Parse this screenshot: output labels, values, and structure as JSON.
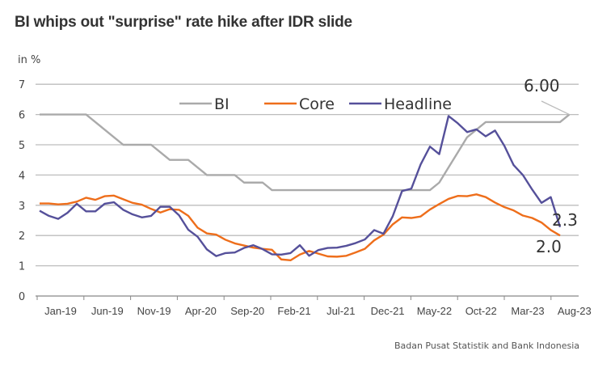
{
  "chart_data": {
    "type": "line",
    "title": "BI whips out \"surprise\" rate hike after IDR slide",
    "ylabel": "in %",
    "ylim": [
      0,
      7
    ],
    "yticks": [
      0,
      1,
      2,
      3,
      4,
      5,
      6,
      7
    ],
    "grid": true,
    "legend_position": "top-center",
    "x_start": "Jan-19",
    "x_tick_labels": [
      "Jan-19",
      "Jun-19",
      "Nov-19",
      "Apr-20",
      "Sep-20",
      "Feb-21",
      "Jul-21",
      "Dec-21",
      "May-22",
      "Oct-22",
      "Mar-23",
      "Aug-23"
    ],
    "series": [
      {
        "name": "BI",
        "color": "#aaaaaa",
        "values": [
          6,
          6,
          6,
          6,
          6,
          6,
          5.75,
          5.5,
          5.25,
          5,
          5,
          5,
          5,
          4.75,
          4.5,
          4.5,
          4.5,
          4.25,
          4,
          4,
          4,
          4,
          3.75,
          3.75,
          3.75,
          3.5,
          3.5,
          3.5,
          3.5,
          3.5,
          3.5,
          3.5,
          3.5,
          3.5,
          3.5,
          3.5,
          3.5,
          3.5,
          3.5,
          3.5,
          3.5,
          3.5,
          3.5,
          3.75,
          4.25,
          4.75,
          5.25,
          5.5,
          5.75,
          5.75,
          5.75,
          5.75,
          5.75,
          5.75,
          5.75,
          5.75,
          5.75,
          6.0
        ]
      },
      {
        "name": "Core",
        "color": "#ee6e1b",
        "values": [
          3.06,
          3.06,
          3.03,
          3.05,
          3.12,
          3.25,
          3.18,
          3.3,
          3.32,
          3.2,
          3.08,
          3.02,
          2.88,
          2.76,
          2.87,
          2.85,
          2.65,
          2.26,
          2.07,
          2.03,
          1.86,
          1.74,
          1.67,
          1.6,
          1.56,
          1.53,
          1.21,
          1.18,
          1.37,
          1.49,
          1.4,
          1.31,
          1.3,
          1.33,
          1.44,
          1.56,
          1.84,
          2.03,
          2.37,
          2.6,
          2.58,
          2.63,
          2.86,
          3.04,
          3.21,
          3.31,
          3.3,
          3.36,
          3.27,
          3.09,
          2.94,
          2.83,
          2.66,
          2.58,
          2.43,
          2.18,
          2.0
        ]
      },
      {
        "name": "Headline",
        "color": "#55509a",
        "values": [
          2.82,
          2.65,
          2.55,
          2.75,
          3.05,
          2.8,
          2.8,
          3.05,
          3.1,
          2.85,
          2.7,
          2.6,
          2.65,
          2.95,
          2.95,
          2.67,
          2.19,
          1.96,
          1.54,
          1.32,
          1.42,
          1.44,
          1.59,
          1.68,
          1.55,
          1.38,
          1.37,
          1.42,
          1.68,
          1.33,
          1.52,
          1.59,
          1.6,
          1.66,
          1.75,
          1.87,
          2.18,
          2.06,
          2.64,
          3.47,
          3.55,
          4.35,
          4.94,
          4.69,
          5.95,
          5.71,
          5.42,
          5.51,
          5.28,
          5.47,
          4.97,
          4.33,
          4.0,
          3.52,
          3.08,
          3.27,
          2.28
        ]
      }
    ],
    "annotations": [
      "6.00",
      "2.3",
      "2.0"
    ],
    "source": "Badan Pusat Statistik and Bank Indonesia"
  }
}
